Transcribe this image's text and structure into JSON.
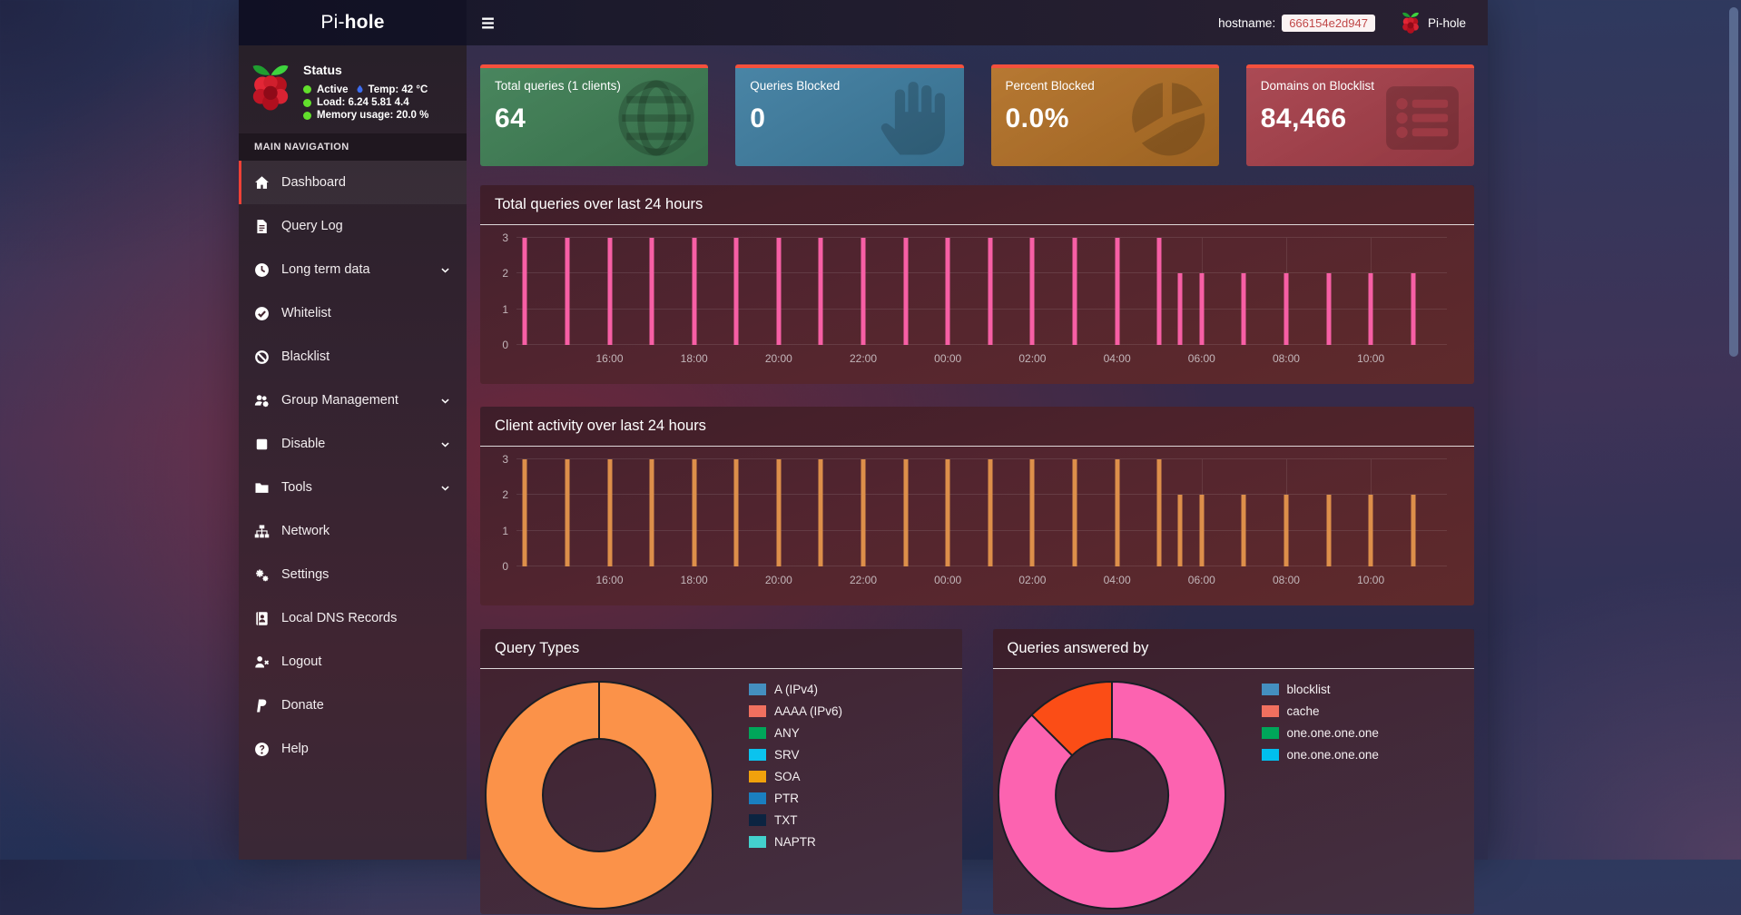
{
  "navbar": {
    "brand_pi": "Pi-",
    "brand_hole": "hole",
    "hostname_label": "hostname:",
    "hostname_value": "666154e2d947",
    "right_brand": "Pi-hole"
  },
  "sidebar": {
    "status": {
      "title": "Status",
      "active_label": "Active",
      "temp_label": "Temp: 42 °C",
      "load_label": "Load:  6.24  5.81  4.4",
      "memory_label": "Memory usage:  20.0 %"
    },
    "section_label": "MAIN NAVIGATION",
    "items": [
      {
        "label": "Dashboard",
        "icon": "home-icon",
        "active": true
      },
      {
        "label": "Query Log",
        "icon": "file-icon"
      },
      {
        "label": "Long term data",
        "icon": "clock-icon",
        "chevron": true
      },
      {
        "label": "Whitelist",
        "icon": "check-circle-icon"
      },
      {
        "label": "Blacklist",
        "icon": "ban-icon"
      },
      {
        "label": "Group Management",
        "icon": "users-gear-icon",
        "chevron": true
      },
      {
        "label": "Disable",
        "icon": "stop-icon",
        "chevron": true
      },
      {
        "label": "Tools",
        "icon": "folder-icon",
        "chevron": true
      },
      {
        "label": "Network",
        "icon": "sitemap-icon"
      },
      {
        "label": "Settings",
        "icon": "gears-icon"
      },
      {
        "label": "Local DNS Records",
        "icon": "address-book-icon"
      },
      {
        "label": "Logout",
        "icon": "user-logout-icon"
      },
      {
        "label": "Donate",
        "icon": "paypal-icon"
      },
      {
        "label": "Help",
        "icon": "question-icon"
      }
    ]
  },
  "accent_border": "#f5503c",
  "cards": [
    {
      "label": "Total queries (1 clients)",
      "value": "64",
      "color": "#3e7e54",
      "icon": "globe-icon"
    },
    {
      "label": "Queries Blocked",
      "value": "0",
      "color": "#3e7da0",
      "icon": "hand-icon"
    },
    {
      "label": "Percent Blocked",
      "value": "0.0%",
      "color": "#b27026",
      "icon": "pie-icon"
    },
    {
      "label": "Domains on Blocklist",
      "value": "84,466",
      "color": "#a63f4a",
      "icon": "list-icon"
    }
  ],
  "chart_data": [
    {
      "type": "bar",
      "title": "Total queries over last 24 hours",
      "bar_color": "#f75fa5",
      "ylim": [
        0,
        3
      ],
      "yticks": [
        0,
        1,
        2,
        3
      ],
      "grid": true,
      "legend_position": "none",
      "time_axis_start": "14:00",
      "xticks": [
        {
          "offset_hours": 2,
          "label": "16:00"
        },
        {
          "offset_hours": 4,
          "label": "18:00"
        },
        {
          "offset_hours": 6,
          "label": "20:00"
        },
        {
          "offset_hours": 8,
          "label": "22:00"
        },
        {
          "offset_hours": 10,
          "label": "00:00"
        },
        {
          "offset_hours": 12,
          "label": "02:00"
        },
        {
          "offset_hours": 14,
          "label": "04:00"
        },
        {
          "offset_hours": 16,
          "label": "06:00"
        },
        {
          "offset_hours": 18,
          "label": "08:00"
        },
        {
          "offset_hours": 20,
          "label": "10:00"
        }
      ],
      "bar_offsets_hours": [
        0,
        1,
        2,
        3,
        4,
        5,
        6,
        7,
        8,
        9,
        10,
        11,
        12,
        13,
        14,
        15,
        15.5,
        16,
        17,
        18,
        19,
        20,
        21
      ],
      "bar_values": [
        3,
        3,
        3,
        3,
        3,
        3,
        3,
        3,
        3,
        3,
        3,
        3,
        3,
        3,
        3,
        3,
        2,
        2,
        2,
        2,
        2,
        2,
        2
      ]
    },
    {
      "type": "bar",
      "title": "Client activity over last 24 hours",
      "bar_color": "#dd8f4a",
      "ylim": [
        0,
        3
      ],
      "yticks": [
        0,
        1,
        2,
        3
      ],
      "grid": true,
      "legend_position": "none",
      "time_axis_start": "14:00",
      "xticks": [
        {
          "offset_hours": 2,
          "label": "16:00"
        },
        {
          "offset_hours": 4,
          "label": "18:00"
        },
        {
          "offset_hours": 6,
          "label": "20:00"
        },
        {
          "offset_hours": 8,
          "label": "22:00"
        },
        {
          "offset_hours": 10,
          "label": "00:00"
        },
        {
          "offset_hours": 12,
          "label": "02:00"
        },
        {
          "offset_hours": 14,
          "label": "04:00"
        },
        {
          "offset_hours": 16,
          "label": "06:00"
        },
        {
          "offset_hours": 18,
          "label": "08:00"
        },
        {
          "offset_hours": 20,
          "label": "10:00"
        }
      ],
      "bar_offsets_hours": [
        0,
        1,
        2,
        3,
        4,
        5,
        6,
        7,
        8,
        9,
        10,
        11,
        12,
        13,
        14,
        15,
        15.5,
        16,
        17,
        18,
        19,
        20,
        21
      ],
      "bar_values": [
        3,
        3,
        3,
        3,
        3,
        3,
        3,
        3,
        3,
        3,
        3,
        3,
        3,
        3,
        3,
        3,
        2,
        2,
        2,
        2,
        2,
        2,
        2
      ]
    },
    {
      "type": "doughnut",
      "title": "Query Types",
      "legend_position": "right",
      "slices": [
        {
          "fraction": 1.0,
          "color": "#fb9249"
        }
      ],
      "legend": [
        {
          "label": "A (IPv4)",
          "color": "#448fc0"
        },
        {
          "label": "AAAA (IPv6)",
          "color": "#f0705f"
        },
        {
          "label": "ANY",
          "color": "#00a65a"
        },
        {
          "label": "SRV",
          "color": "#0bc3ee"
        },
        {
          "label": "SOA",
          "color": "#f0a10c"
        },
        {
          "label": "PTR",
          "color": "#1a7fc0"
        },
        {
          "label": "TXT",
          "color": "#0c2441"
        },
        {
          "label": "NAPTR",
          "color": "#43d1cd"
        }
      ]
    },
    {
      "type": "doughnut",
      "title": "Queries answered by",
      "legend_position": "right",
      "slices": [
        {
          "fraction": 0.875,
          "color": "#fc63b0"
        },
        {
          "fraction": 0.125,
          "color": "#fb4d16"
        }
      ],
      "legend": [
        {
          "label": "blocklist",
          "color": "#448fc0"
        },
        {
          "label": "cache",
          "color": "#f0705f"
        },
        {
          "label": "one.one.one.one",
          "color": "#00a65a"
        },
        {
          "label": "one.one.one.one",
          "color": "#00bfee"
        }
      ]
    }
  ]
}
